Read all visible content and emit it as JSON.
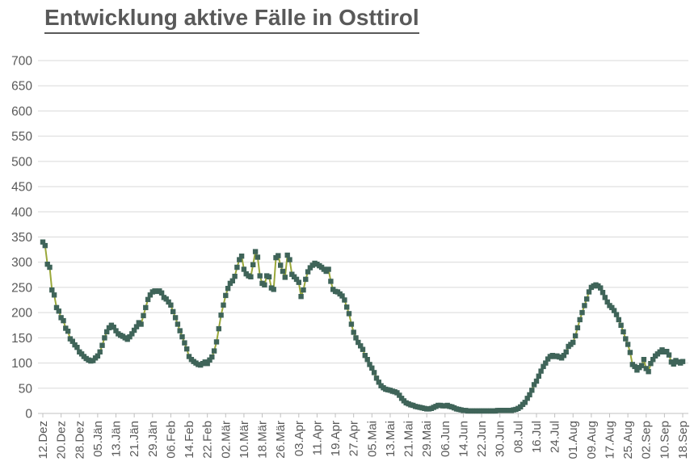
{
  "chart_data": {
    "type": "line",
    "title": "Entwicklung aktive Fälle in Osttirol",
    "series_name": "aktive Fälle",
    "xlabel": "",
    "ylabel": "",
    "ylim": [
      0,
      700
    ],
    "ytick_step": 50,
    "grid": "horizontal",
    "legend": "none",
    "marker_shape": "square",
    "x_tick_interval_days": 8,
    "x_tick_labels": [
      "12.Dez",
      "20.Dez",
      "28.Dez",
      "05.Jän",
      "13.Jän",
      "21.Jän",
      "29.Jän",
      "06.Feb",
      "14.Feb",
      "22.Feb",
      "02.Mär",
      "10.Mär",
      "18.Mär",
      "26.Mär",
      "03.Apr",
      "11.Apr",
      "19.Apr",
      "27.Apr",
      "05.Mai",
      "13.Mai",
      "21.Mai",
      "29.Mai",
      "06.Jun",
      "14.Jun",
      "22.Jun",
      "30.Jun",
      "08.Jul",
      "16.Jul",
      "24.Jul",
      "01.Aug",
      "09.Aug",
      "17.Aug",
      "25.Aug",
      "02.Sep",
      "10.Sep",
      "18.Sep"
    ],
    "values": [
      340,
      333,
      296,
      290,
      245,
      235,
      210,
      203,
      190,
      184,
      169,
      163,
      148,
      143,
      136,
      131,
      122,
      118,
      113,
      109,
      106,
      104,
      105,
      110,
      114,
      122,
      135,
      150,
      162,
      170,
      175,
      171,
      164,
      158,
      155,
      153,
      150,
      147,
      152,
      158,
      165,
      172,
      180,
      177,
      194,
      210,
      226,
      235,
      241,
      243,
      242,
      243,
      239,
      230,
      227,
      221,
      215,
      202,
      190,
      177,
      164,
      152,
      140,
      128,
      113,
      107,
      103,
      100,
      97,
      96,
      99,
      102,
      99,
      106,
      112,
      124,
      142,
      168,
      195,
      215,
      234,
      248,
      258,
      263,
      272,
      290,
      305,
      312,
      286,
      277,
      273,
      271,
      295,
      321,
      310,
      273,
      258,
      255,
      273,
      271,
      249,
      246,
      309,
      313,
      294,
      282,
      270,
      314,
      305,
      276,
      271,
      266,
      260,
      232,
      245,
      266,
      281,
      289,
      294,
      298,
      296,
      293,
      290,
      286,
      282,
      286,
      262,
      246,
      242,
      241,
      237,
      233,
      225,
      211,
      198,
      177,
      161,
      150,
      141,
      134,
      127,
      115,
      107,
      97,
      90,
      81,
      70,
      62,
      55,
      51,
      48,
      47,
      46,
      44,
      43,
      41,
      36,
      30,
      25,
      21,
      19,
      17,
      16,
      14,
      13,
      12,
      11,
      10,
      9,
      9,
      10,
      12,
      14,
      16,
      16,
      15,
      15,
      16,
      14,
      13,
      11,
      9,
      8,
      7,
      6,
      6,
      5,
      5,
      5,
      5,
      5,
      5,
      5,
      5,
      5,
      5,
      5,
      5,
      5,
      6,
      6,
      6,
      6,
      6,
      6,
      6,
      7,
      8,
      10,
      13,
      18,
      22,
      30,
      37,
      46,
      57,
      64,
      74,
      84,
      93,
      100,
      108,
      113,
      115,
      113,
      114,
      112,
      110,
      115,
      122,
      133,
      137,
      141,
      154,
      170,
      186,
      200,
      214,
      227,
      241,
      250,
      253,
      255,
      253,
      249,
      240,
      230,
      221,
      214,
      210,
      204,
      196,
      186,
      175,
      162,
      148,
      137,
      121,
      97,
      93,
      86,
      91,
      95,
      107,
      89,
      83,
      99,
      107,
      114,
      118,
      122,
      126,
      122,
      123,
      116,
      102,
      98,
      105,
      102,
      100,
      103
    ],
    "colors": {
      "line": "#9AA83A",
      "marker": "#3F6459",
      "text": "#595959",
      "gridline": "#D9D9D9",
      "axis": "#C0C0C0"
    }
  }
}
